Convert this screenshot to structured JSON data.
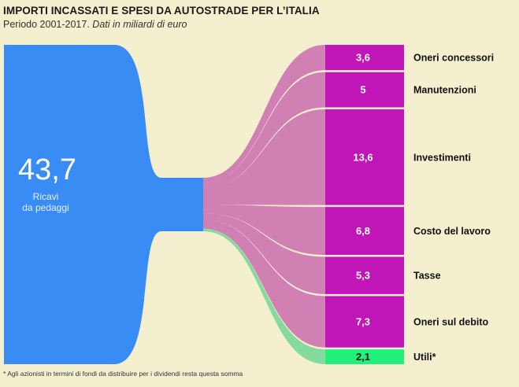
{
  "title": "IMPORTI INCASSATI E SPESI DA AUTOSTRADE PER L’ITALIA",
  "subtitle_plain": "Periodo 2001-2017.",
  "subtitle_italic": "Dati in miliardi di euro",
  "footnote": "* Agli azionisti in termini di fondi da distribuire per i dividendi resta questa somma",
  "colors": {
    "background": "#f3efcf",
    "source": "#3a8cf5",
    "flow": "#b5259e",
    "box": "#c116b7",
    "utili": "#21f07a",
    "utili_flow": "#7dd99a"
  },
  "chart_data": {
    "type": "sankey",
    "source": {
      "value": "43,7",
      "numeric": 43.7,
      "label_line1": "Ricavi",
      "label_line2": "da pedaggi"
    },
    "targets": [
      {
        "label": "Oneri concessori",
        "value": "3,6",
        "numeric": 3.6
      },
      {
        "label": "Manutenzioni",
        "value": "5",
        "numeric": 5
      },
      {
        "label": "Investimenti",
        "value": "13,6",
        "numeric": 13.6
      },
      {
        "label": "Costo del lavoro",
        "value": "6,8",
        "numeric": 6.8
      },
      {
        "label": "Tasse",
        "value": "5,3",
        "numeric": 5.3
      },
      {
        "label": "Oneri sul debito",
        "value": "7,3",
        "numeric": 7.3
      },
      {
        "label": "Utili*",
        "value": "2,1",
        "numeric": 2.1
      }
    ]
  }
}
